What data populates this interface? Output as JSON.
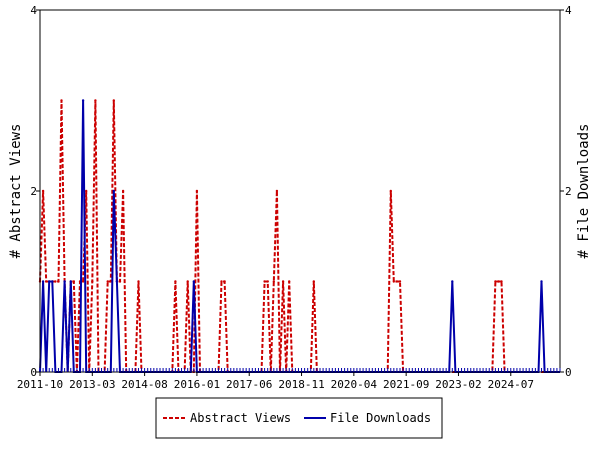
{
  "chart_data": {
    "type": "line",
    "xlim": [
      "2011-10",
      "2025-11"
    ],
    "x_ticks": [
      "2011-10",
      "2013-03",
      "2014-08",
      "2016-01",
      "2017-06",
      "2018-11",
      "2020-04",
      "2021-09",
      "2023-02",
      "2024-07"
    ],
    "left_axis": {
      "label": "# Abstract Views",
      "ylim": [
        0,
        4
      ],
      "ticks": [
        "0",
        "2",
        "4"
      ]
    },
    "right_axis": {
      "label": "# File Downloads",
      "ylim": [
        0,
        4
      ],
      "ticks": [
        "0",
        "2",
        "4"
      ]
    },
    "series": [
      {
        "name": "Abstract Views",
        "axis": "left",
        "color": "#cc0000",
        "style": "dashed",
        "points": [
          [
            "2011-10",
            1
          ],
          [
            "2011-11",
            2
          ],
          [
            "2011-12",
            1
          ],
          [
            "2012-01",
            1
          ],
          [
            "2012-02",
            1
          ],
          [
            "2012-03",
            1
          ],
          [
            "2012-04",
            1
          ],
          [
            "2012-05",
            3
          ],
          [
            "2012-06",
            1
          ],
          [
            "2012-07",
            0
          ],
          [
            "2012-08",
            1
          ],
          [
            "2012-09",
            1
          ],
          [
            "2012-10",
            0
          ],
          [
            "2012-11",
            1
          ],
          [
            "2012-12",
            1
          ],
          [
            "2013-01",
            2
          ],
          [
            "2013-02",
            0
          ],
          [
            "2013-03",
            1
          ],
          [
            "2013-04",
            3
          ],
          [
            "2013-05",
            0
          ],
          [
            "2013-06",
            0
          ],
          [
            "2013-07",
            0
          ],
          [
            "2013-08",
            1
          ],
          [
            "2013-09",
            1
          ],
          [
            "2013-10",
            3
          ],
          [
            "2013-11",
            1
          ],
          [
            "2013-12",
            1
          ],
          [
            "2014-01",
            2
          ],
          [
            "2014-02",
            0
          ],
          [
            "2014-03",
            0
          ],
          [
            "2014-04",
            0
          ],
          [
            "2014-05",
            0
          ],
          [
            "2014-06",
            1
          ],
          [
            "2014-07",
            0
          ],
          [
            "2015-06",
            1
          ],
          [
            "2015-07",
            0
          ],
          [
            "2015-10",
            1
          ],
          [
            "2015-11",
            0
          ],
          [
            "2016-01",
            2
          ],
          [
            "2016-02",
            0
          ],
          [
            "2016-09",
            1
          ],
          [
            "2016-10",
            1
          ],
          [
            "2016-11",
            0
          ],
          [
            "2017-11",
            1
          ],
          [
            "2017-12",
            1
          ],
          [
            "2018-01",
            0
          ],
          [
            "2018-02",
            1
          ],
          [
            "2018-03",
            2
          ],
          [
            "2018-04",
            0
          ],
          [
            "2018-05",
            1
          ],
          [
            "2018-06",
            0
          ],
          [
            "2018-07",
            1
          ],
          [
            "2018-08",
            0
          ],
          [
            "2019-03",
            1
          ],
          [
            "2019-04",
            0
          ],
          [
            "2021-04",
            2
          ],
          [
            "2021-05",
            1
          ],
          [
            "2021-06",
            1
          ],
          [
            "2021-07",
            1
          ],
          [
            "2021-08",
            0
          ],
          [
            "2024-02",
            1
          ],
          [
            "2024-03",
            1
          ],
          [
            "2024-04",
            1
          ],
          [
            "2024-05",
            0
          ]
        ]
      },
      {
        "name": "File Downloads",
        "axis": "right",
        "color": "#0000aa",
        "style": "solid",
        "points": [
          [
            "2011-10",
            0
          ],
          [
            "2011-11",
            1
          ],
          [
            "2011-12",
            0
          ],
          [
            "2012-01",
            1
          ],
          [
            "2012-02",
            1
          ],
          [
            "2012-03",
            0
          ],
          [
            "2012-04",
            0
          ],
          [
            "2012-05",
            0
          ],
          [
            "2012-06",
            1
          ],
          [
            "2012-07",
            0
          ],
          [
            "2012-08",
            1
          ],
          [
            "2012-09",
            0
          ],
          [
            "2012-10",
            0
          ],
          [
            "2012-11",
            0
          ],
          [
            "2012-12",
            3
          ],
          [
            "2013-01",
            0
          ],
          [
            "2013-02",
            0
          ],
          [
            "2013-03",
            0
          ],
          [
            "2013-04",
            0
          ],
          [
            "2013-05",
            0
          ],
          [
            "2013-06",
            0
          ],
          [
            "2013-07",
            0
          ],
          [
            "2013-08",
            0
          ],
          [
            "2013-09",
            0
          ],
          [
            "2013-10",
            2
          ],
          [
            "2013-11",
            1
          ],
          [
            "2013-12",
            0
          ],
          [
            "2015-10",
            0
          ],
          [
            "2015-11",
            0
          ],
          [
            "2015-12",
            1
          ],
          [
            "2016-01",
            0
          ],
          [
            "2022-11",
            0
          ],
          [
            "2022-12",
            1
          ],
          [
            "2023-01",
            0
          ],
          [
            "2025-04",
            0
          ],
          [
            "2025-05",
            1
          ],
          [
            "2025-06",
            0
          ]
        ]
      }
    ],
    "legend_position": "bottom-center"
  }
}
